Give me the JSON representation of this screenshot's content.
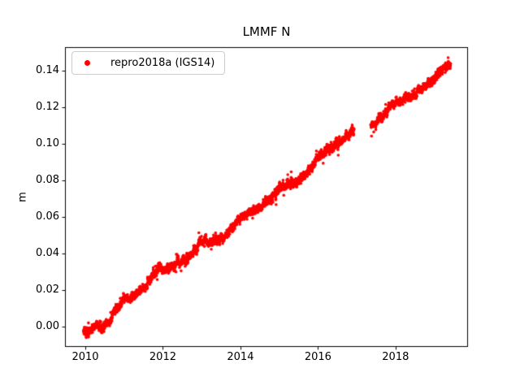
{
  "figure": {
    "background": "#ffffff"
  },
  "chart_data": {
    "type": "scatter",
    "title": "LMMF N",
    "xlabel": "",
    "ylabel": "m",
    "grid": false,
    "axis_color": "#000000",
    "legend_position": "upper-left",
    "legend": [
      {
        "label": "repro2018a (IGS14)",
        "marker": "dot",
        "color": "#ff0000"
      }
    ],
    "xlim": [
      2009.476,
      2019.868
    ],
    "ylim": [
      -0.0113,
      0.1529
    ],
    "xticks": {
      "values": [
        2010,
        2012,
        2014,
        2016,
        2018
      ],
      "labels": [
        "2010",
        "2012",
        "2014",
        "2016",
        "2018"
      ]
    },
    "yticks": {
      "values": [
        0.0,
        0.02,
        0.04,
        0.06,
        0.08,
        0.1,
        0.12,
        0.14
      ],
      "labels": [
        "0.00",
        "0.02",
        "0.04",
        "0.06",
        "0.08",
        "0.10",
        "0.12",
        "0.14"
      ]
    },
    "series": [
      {
        "name": "repro2018a (IGS14)",
        "color": "#ff0000",
        "marker": "point",
        "marker_radius_px": 1.8,
        "points_per_year": 365,
        "time_range": [
          2009.95,
          2019.42
        ],
        "gaps": [
          [
            2016.93,
            2017.36
          ]
        ],
        "trend_m_per_yr": 0.0154,
        "noise_sigma_m": 0.0013,
        "anchors": [
          [
            2009.95,
            -0.0015
          ],
          [
            2010.08,
            -0.002
          ],
          [
            2010.25,
            0.0005
          ],
          [
            2010.45,
            -0.0005
          ],
          [
            2010.65,
            0.004
          ],
          [
            2010.85,
            0.0105
          ],
          [
            2011.0,
            0.0155
          ],
          [
            2011.15,
            0.015
          ],
          [
            2011.3,
            0.0175
          ],
          [
            2011.5,
            0.0205
          ],
          [
            2011.7,
            0.0265
          ],
          [
            2011.9,
            0.0325
          ],
          [
            2012.05,
            0.031
          ],
          [
            2012.2,
            0.0325
          ],
          [
            2012.4,
            0.0345
          ],
          [
            2012.6,
            0.037
          ],
          [
            2012.8,
            0.0415
          ],
          [
            2012.95,
            0.0455
          ],
          [
            2013.1,
            0.0475
          ],
          [
            2013.25,
            0.0455
          ],
          [
            2013.45,
            0.0465
          ],
          [
            2013.65,
            0.0495
          ],
          [
            2013.85,
            0.0555
          ],
          [
            2014.0,
            0.0595
          ],
          [
            2014.15,
            0.0615
          ],
          [
            2014.4,
            0.0635
          ],
          [
            2014.6,
            0.0665
          ],
          [
            2014.8,
            0.071
          ],
          [
            2015.0,
            0.075
          ],
          [
            2015.2,
            0.0785
          ],
          [
            2015.4,
            0.0778
          ],
          [
            2015.6,
            0.081
          ],
          [
            2015.8,
            0.086
          ],
          [
            2016.0,
            0.092
          ],
          [
            2016.2,
            0.096
          ],
          [
            2016.4,
            0.0985
          ],
          [
            2016.6,
            0.102
          ],
          [
            2016.8,
            0.105
          ],
          [
            2016.93,
            0.107
          ],
          [
            2017.36,
            0.1103
          ],
          [
            2017.5,
            0.1123
          ],
          [
            2017.7,
            0.116
          ],
          [
            2017.9,
            0.1205
          ],
          [
            2018.05,
            0.1232
          ],
          [
            2018.25,
            0.1238
          ],
          [
            2018.45,
            0.1262
          ],
          [
            2018.65,
            0.1295
          ],
          [
            2018.85,
            0.133
          ],
          [
            2019.0,
            0.136
          ],
          [
            2019.15,
            0.139
          ],
          [
            2019.28,
            0.142
          ],
          [
            2019.42,
            0.1432
          ]
        ],
        "outliers": [
          [
            2015.31,
            0.0845
          ]
        ]
      }
    ]
  }
}
